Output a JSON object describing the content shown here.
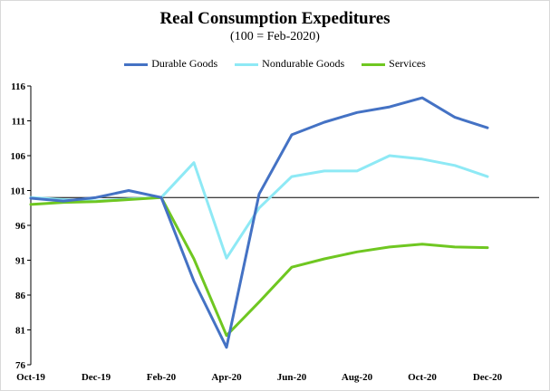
{
  "chart_data": {
    "type": "line",
    "title": "Real Consumption Expeditures",
    "subtitle": "(100 = Feb-2020)",
    "x": [
      "Oct-19",
      "Nov-19",
      "Dec-19",
      "Jan-20",
      "Feb-20",
      "Mar-20",
      "Apr-20",
      "May-20",
      "Jun-20",
      "Jul-20",
      "Aug-20",
      "Sep-20",
      "Oct-20",
      "Nov-20",
      "Dec-20"
    ],
    "x_tick_labels": [
      "Oct-19",
      "Dec-19",
      "Feb-20",
      "Apr-20",
      "Jun-20",
      "Aug-20",
      "Oct-20",
      "Dec-20"
    ],
    "y_ticks": [
      76,
      81,
      86,
      91,
      96,
      101,
      106,
      111,
      116
    ],
    "ylim": [
      76,
      116
    ],
    "baseline": 100,
    "legend_position": "top-center",
    "series": [
      {
        "name": "Durable Goods",
        "color": "#4472c4",
        "values": [
          99.9,
          99.5,
          100.0,
          101.0,
          100.0,
          88.0,
          78.5,
          100.5,
          109.0,
          110.8,
          112.2,
          113.0,
          114.3,
          111.5,
          110.0
        ]
      },
      {
        "name": "Nondurable Goods",
        "color": "#8ee9f5",
        "values": [
          100.0,
          99.7,
          99.5,
          99.8,
          100.0,
          105.0,
          91.3,
          98.5,
          103.0,
          103.8,
          103.8,
          106.0,
          105.5,
          104.6,
          103.0
        ]
      },
      {
        "name": "Services",
        "color": "#6fc721",
        "values": [
          99.0,
          99.3,
          99.4,
          99.7,
          100.0,
          91.2,
          80.2,
          85.0,
          90.0,
          91.2,
          92.2,
          92.9,
          93.3,
          92.9,
          92.8
        ]
      }
    ]
  }
}
